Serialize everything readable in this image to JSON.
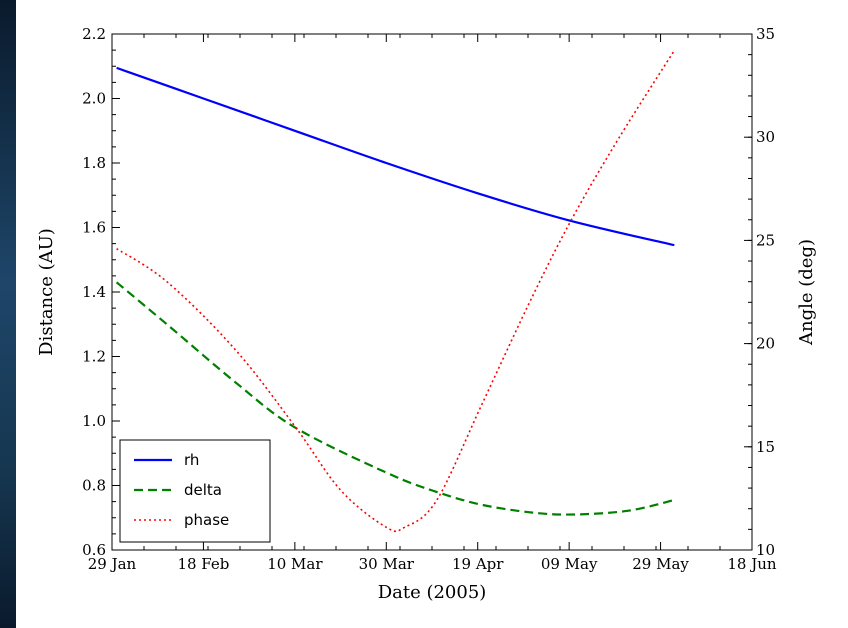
{
  "chart_data": {
    "type": "line",
    "xlabel": "Date (2005)",
    "ylabel": "Distance (AU)",
    "y2label": "Angle (deg)",
    "x_tick_labels": [
      "29 Jan",
      "18 Feb",
      "10 Mar",
      "30 Mar",
      "19 Apr",
      "09 May",
      "29 May",
      "18 Jun"
    ],
    "x_ticks": [
      "2005-01-29",
      "2005-02-18",
      "2005-03-10",
      "2005-03-30",
      "2005-04-19",
      "2005-05-09",
      "2005-05-29",
      "2005-06-18"
    ],
    "xlim": [
      "2005-01-29",
      "2005-06-18"
    ],
    "ylim": [
      0.6,
      2.2
    ],
    "y_tick_labels": [
      "0.6",
      "0.8",
      "1.0",
      "1.2",
      "1.4",
      "1.6",
      "1.8",
      "2.0",
      "2.2"
    ],
    "y2lim": [
      10,
      35
    ],
    "y2_tick_labels": [
      "10",
      "15",
      "20",
      "25",
      "30",
      "35"
    ],
    "legend": {
      "position": "lower-left",
      "entries": [
        "rh",
        "delta",
        "phase"
      ]
    },
    "grid": false,
    "series": [
      {
        "name": "rh",
        "axis": "left",
        "color": "#0000ff",
        "style": "solid",
        "x": [
          "2005-01-30",
          "2005-02-18",
          "2005-03-10",
          "2005-03-30",
          "2005-04-19",
          "2005-05-09",
          "2005-06-01"
        ],
        "y": [
          2.095,
          2.0,
          1.9,
          1.8,
          1.706,
          1.622,
          1.545
        ]
      },
      {
        "name": "delta",
        "axis": "left",
        "color": "#008000",
        "style": "dashed",
        "x": [
          "2005-01-30",
          "2005-02-10",
          "2005-02-25",
          "2005-03-10",
          "2005-03-30",
          "2005-04-10",
          "2005-04-20",
          "2005-05-01",
          "2005-05-10",
          "2005-05-22",
          "2005-06-01"
        ],
        "y": [
          1.43,
          1.3,
          1.12,
          0.98,
          0.84,
          0.78,
          0.74,
          0.716,
          0.71,
          0.722,
          0.755
        ]
      },
      {
        "name": "phase",
        "axis": "right",
        "color": "#ff0000",
        "style": "dotted",
        "x": [
          "2005-01-30",
          "2005-02-10",
          "2005-02-25",
          "2005-03-10",
          "2005-03-20",
          "2005-03-30",
          "2005-04-03",
          "2005-04-10",
          "2005-04-20",
          "2005-05-01",
          "2005-05-10",
          "2005-05-20",
          "2005-06-01"
        ],
        "y": [
          24.6,
          23.0,
          19.7,
          16.0,
          12.9,
          11.1,
          11.1,
          12.4,
          17.1,
          22.3,
          26.2,
          30.0,
          34.2
        ]
      }
    ]
  }
}
